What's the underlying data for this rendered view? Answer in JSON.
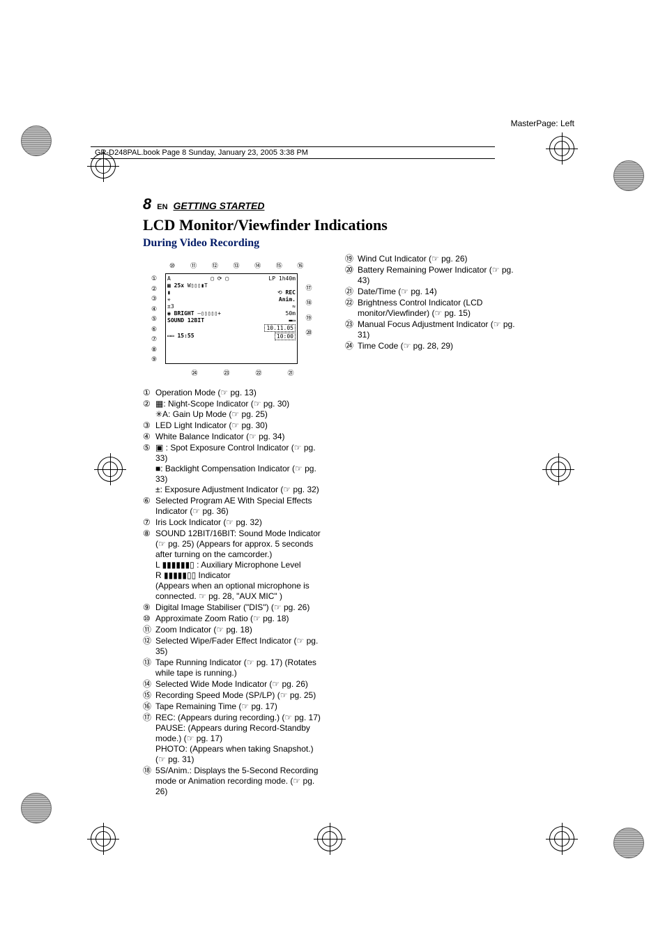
{
  "master_page": "MasterPage: Left",
  "book_header": "GR-D248PAL.book  Page 8  Sunday, January 23, 2005  3:38 PM",
  "page_number": "8",
  "lang": "EN",
  "section": "GETTING STARTED",
  "title": "LCD Monitor/Viewfinder Indications",
  "subtitle": "During Video Recording",
  "lcd": {
    "zoom": "25x",
    "zoom_bar": "W▯▯▯▮T",
    "lp": "LP",
    "time_remain": "1h40m",
    "rec": "REC",
    "anim": "Anim.",
    "exposure": "±3",
    "bright_label": "BRIGHT",
    "bright_bar": "–▯▯▯▯▯+",
    "distance": "50m",
    "sound": "SOUND",
    "sound_mode": "12BIT",
    "date": "10.11.05",
    "time": "10:00",
    "timecode": "15:55",
    "callout_top": [
      "⑩",
      "⑪",
      "⑫",
      "⑬",
      "⑭",
      "⑮",
      "⑯"
    ],
    "callout_left": [
      "①",
      "②",
      "③",
      "④",
      "⑤",
      "⑥",
      "⑦",
      "⑧",
      "⑨"
    ],
    "callout_right": [
      "⑰",
      "⑱",
      "⑲",
      "⑳"
    ],
    "callout_bottom": [
      "㉔",
      "㉓",
      "㉒",
      "㉑"
    ]
  },
  "items_left": [
    {
      "n": "①",
      "t": "Operation Mode (☞ pg. 13)"
    },
    {
      "n": "②",
      "t": "▦: Night-Scope Indicator (☞ pg. 30)\n✳A: Gain Up Mode (☞ pg. 25)"
    },
    {
      "n": "③",
      "t": "LED Light Indicator (☞ pg. 30)"
    },
    {
      "n": "④",
      "t": "White Balance Indicator (☞ pg. 34)"
    },
    {
      "n": "⑤",
      "t": "▣ : Spot Exposure Control Indicator (☞ pg. 33)\n■: Backlight Compensation Indicator (☞ pg. 33)\n±: Exposure Adjustment Indicator (☞ pg. 32)"
    },
    {
      "n": "⑥",
      "t": "Selected Program AE With Special Effects Indicator (☞ pg. 36)"
    },
    {
      "n": "⑦",
      "t": "Iris Lock Indicator (☞ pg. 32)"
    },
    {
      "n": "⑧",
      "t": "SOUND 12BIT/16BIT: Sound Mode Indicator (☞ pg. 25) (Appears for approx. 5 seconds after turning on the camcorder.)\nL ▮▮▮▮▮▮▯ : Auxiliary Microphone Level\nR ▮▮▮▮▮▯▯   Indicator\n(Appears when an optional microphone is connected. ☞ pg. 28, \"AUX MIC\" )"
    },
    {
      "n": "⑨",
      "t": "Digital Image Stabiliser (\"DIS\") (☞ pg. 26)"
    },
    {
      "n": "⑩",
      "t": "Approximate Zoom Ratio (☞ pg. 18)"
    },
    {
      "n": "⑪",
      "t": "Zoom Indicator (☞ pg. 18)"
    },
    {
      "n": "⑫",
      "t": "Selected Wipe/Fader Effect Indicator (☞ pg. 35)"
    },
    {
      "n": "⑬",
      "t": "Tape Running Indicator (☞ pg. 17) (Rotates while tape is running.)"
    },
    {
      "n": "⑭",
      "t": "Selected Wide Mode Indicator (☞ pg. 26)"
    },
    {
      "n": "⑮",
      "t": "Recording Speed Mode (SP/LP) (☞ pg. 25)"
    },
    {
      "n": "⑯",
      "t": "Tape Remaining Time (☞ pg. 17)"
    },
    {
      "n": "⑰",
      "t": "REC: (Appears during recording.) (☞ pg. 17)\nPAUSE: (Appears during Record-Standby mode.) (☞ pg. 17)\nPHOTO: (Appears when taking Snapshot.) (☞ pg. 31)"
    },
    {
      "n": "⑱",
      "t": "5S/Anim.: Displays the 5-Second Recording mode or Animation recording mode. (☞ pg. 26)"
    }
  ],
  "items_right": [
    {
      "n": "⑲",
      "t": "Wind Cut Indicator (☞ pg. 26)"
    },
    {
      "n": "⑳",
      "t": "Battery Remaining Power Indicator (☞ pg. 43)"
    },
    {
      "n": "㉑",
      "t": "Date/Time (☞ pg. 14)"
    },
    {
      "n": "㉒",
      "t": "Brightness Control Indicator (LCD monitor/Viewfinder) (☞ pg. 15)"
    },
    {
      "n": "㉓",
      "t": "Manual Focus Adjustment Indicator (☞ pg. 31)"
    },
    {
      "n": "㉔",
      "t": "Time Code (☞ pg. 28, 29)"
    }
  ]
}
